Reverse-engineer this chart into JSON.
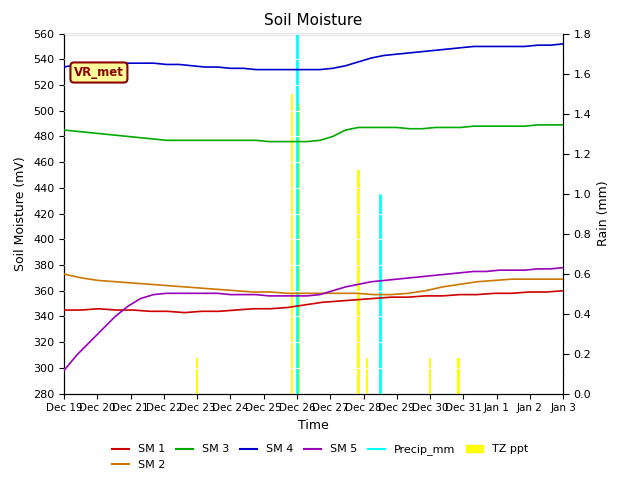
{
  "title": "Soil Moisture",
  "xlabel": "Time",
  "ylabel_left": "Soil Moisture (mV)",
  "ylabel_right": "Rain (mm)",
  "ylim_left": [
    280,
    560
  ],
  "ylim_right": [
    0.0,
    1.8
  ],
  "yticks_left": [
    280,
    300,
    320,
    340,
    360,
    380,
    400,
    420,
    440,
    460,
    480,
    500,
    520,
    540,
    560
  ],
  "yticks_right": [
    0.0,
    0.2,
    0.4,
    0.6,
    0.8,
    1.0,
    1.2,
    1.4,
    1.6,
    1.8
  ],
  "bg_color": "#e8e8e8",
  "vr_met_label": "VR_met",
  "x_tick_labels": [
    "Dec 19",
    "Dec 20",
    "Dec 21",
    "Dec 22",
    "Dec 23",
    "Dec 24",
    "Dec 25",
    "Dec 26",
    "Dec 27",
    "Dec 28",
    "Dec 29",
    "Dec 30",
    "Dec 31",
    "Jan 1",
    "Jan 2",
    "Jan 3"
  ],
  "x_tick_positions": [
    0,
    1,
    2,
    3,
    4,
    5,
    6,
    7,
    8,
    9,
    10,
    11,
    12,
    13,
    14,
    15
  ],
  "sm1": [
    345,
    345,
    346,
    345,
    345,
    344,
    344,
    343,
    344,
    344,
    345,
    346,
    346,
    347,
    349,
    351,
    352,
    353,
    354,
    355,
    355,
    356,
    356,
    357,
    357,
    358,
    358,
    359,
    359,
    360
  ],
  "sm2": [
    373,
    370,
    368,
    367,
    366,
    365,
    364,
    363,
    362,
    361,
    360,
    359,
    359,
    358,
    358,
    358,
    358,
    358,
    357,
    357,
    358,
    360,
    363,
    365,
    367,
    368,
    369,
    369,
    369,
    369
  ],
  "sm3": [
    485,
    484,
    483,
    482,
    481,
    480,
    479,
    478,
    477,
    477,
    477,
    477,
    477,
    477,
    477,
    477,
    476,
    476,
    476,
    476,
    477,
    480,
    485,
    487,
    487,
    487,
    487,
    486,
    486,
    487,
    487,
    487,
    488,
    488,
    488,
    488,
    488,
    489,
    489,
    489
  ],
  "sm4": [
    534,
    536,
    537,
    537,
    537,
    537,
    537,
    537,
    536,
    536,
    535,
    534,
    534,
    533,
    533,
    532,
    532,
    532,
    532,
    532,
    532,
    533,
    535,
    538,
    541,
    543,
    544,
    545,
    546,
    547,
    548,
    549,
    550,
    550,
    550,
    550,
    550,
    551,
    551,
    552
  ],
  "sm5": [
    298,
    310,
    320,
    330,
    340,
    348,
    354,
    357,
    358,
    358,
    358,
    358,
    358,
    357,
    357,
    357,
    356,
    356,
    356,
    356,
    357,
    360,
    363,
    365,
    367,
    368,
    369,
    370,
    371,
    372,
    373,
    374,
    375,
    375,
    376,
    376,
    376,
    377,
    377,
    378
  ],
  "precip_events": [
    {
      "x": 7.0,
      "height_mm": 1.8
    },
    {
      "x": 9.5,
      "height_mm": 1.0
    }
  ],
  "tz_ppt_events": [
    {
      "x": 4.0,
      "height_mm": 0.18
    },
    {
      "x": 6.85,
      "height_mm": 1.5
    },
    {
      "x": 7.05,
      "height_mm": 1.45
    },
    {
      "x": 8.85,
      "height_mm": 1.12
    },
    {
      "x": 9.1,
      "height_mm": 0.18
    },
    {
      "x": 9.5,
      "height_mm": 0.18
    },
    {
      "x": 11.0,
      "height_mm": 0.18
    },
    {
      "x": 11.85,
      "height_mm": 0.18
    }
  ],
  "sm1_color": "#cc0000",
  "sm2_color": "#cc7700",
  "sm3_color": "#00aa00",
  "sm4_color": "#0000cc",
  "sm5_color": "#9900bb",
  "precip_color": "cyan",
  "tz_color": "yellow"
}
